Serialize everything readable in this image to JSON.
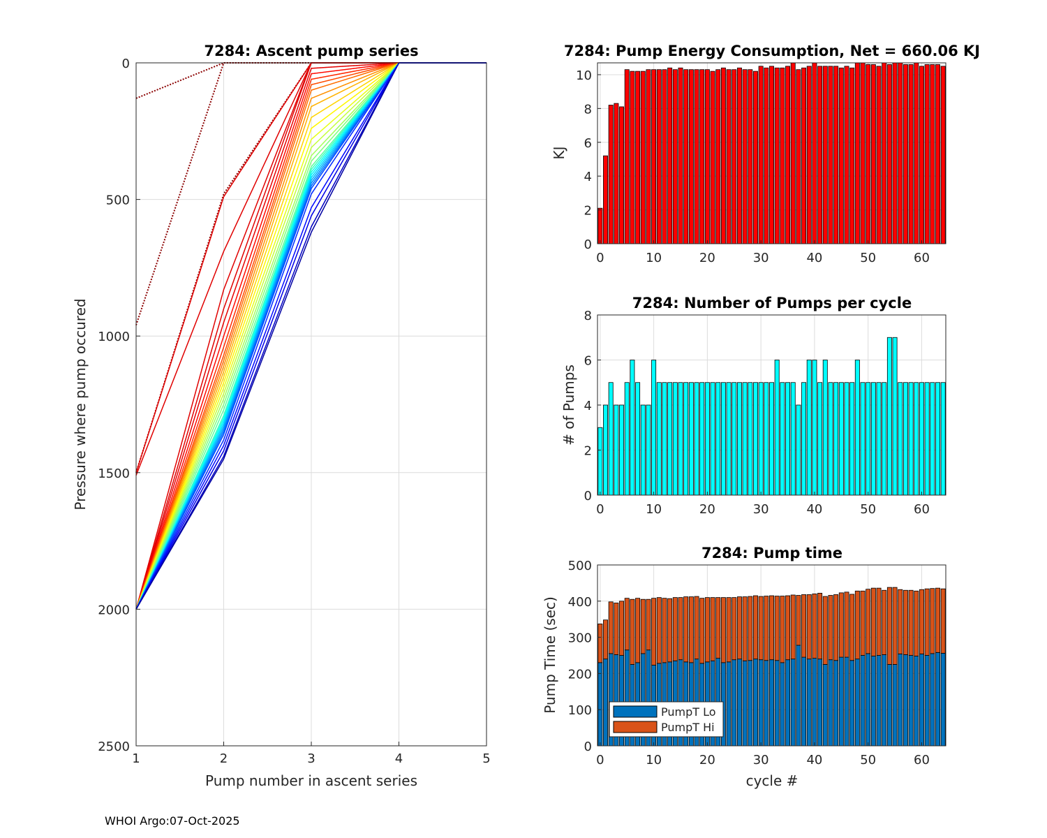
{
  "footer": "WHOI Argo:07-Oct-2025",
  "chart_data": [
    {
      "id": "ascent",
      "type": "line",
      "title": "7284: Ascent pump series",
      "xlabel": "Pump number in ascent series",
      "ylabel": "Pressure where pump occured",
      "xlim": [
        1,
        5
      ],
      "ylim": [
        0,
        2500
      ],
      "y_reversed": true,
      "xticks": [
        1,
        2,
        3,
        4,
        5
      ],
      "yticks": [
        0,
        500,
        1000,
        1500,
        2000,
        2500
      ],
      "grid": true,
      "colormap": "jet",
      "series": [
        {
          "cycle": 0,
          "values": [
            130,
            0,
            0,
            0,
            0
          ],
          "style": "dotted"
        },
        {
          "cycle": 1,
          "values": [
            960,
            0,
            0,
            0,
            0
          ],
          "style": "dotted"
        },
        {
          "cycle": 2,
          "values": [
            1500,
            480,
            0,
            0,
            0
          ],
          "style": "dotted"
        },
        {
          "cycle": 3,
          "values": [
            1500,
            490,
            0,
            0,
            0
          ],
          "style": "solid"
        },
        {
          "cycle": 4,
          "values": [
            1510,
            690,
            0,
            0,
            0
          ],
          "style": "solid"
        },
        {
          "cycle": 5,
          "values": [
            2000,
            830,
            0,
            0,
            0
          ],
          "style": "solid"
        },
        {
          "cycle": 6,
          "values": [
            2000,
            900,
            0,
            0,
            0
          ],
          "style": "solid"
        },
        {
          "cycle": 8,
          "values": [
            2000,
            950,
            20,
            0,
            0
          ],
          "style": "solid"
        },
        {
          "cycle": 10,
          "values": [
            2000,
            1000,
            40,
            0,
            0
          ],
          "style": "solid"
        },
        {
          "cycle": 12,
          "values": [
            2000,
            1040,
            60,
            0,
            0
          ],
          "style": "solid"
        },
        {
          "cycle": 14,
          "values": [
            2000,
            1070,
            80,
            0,
            0
          ],
          "style": "solid"
        },
        {
          "cycle": 16,
          "values": [
            2000,
            1090,
            100,
            0,
            0
          ],
          "style": "solid"
        },
        {
          "cycle": 18,
          "values": [
            2000,
            1110,
            130,
            0,
            0
          ],
          "style": "solid"
        },
        {
          "cycle": 20,
          "values": [
            2000,
            1130,
            160,
            0,
            0
          ],
          "style": "solid"
        },
        {
          "cycle": 22,
          "values": [
            2000,
            1150,
            200,
            0,
            0
          ],
          "style": "solid"
        },
        {
          "cycle": 24,
          "values": [
            2000,
            1170,
            240,
            0,
            0
          ],
          "style": "solid"
        },
        {
          "cycle": 26,
          "values": [
            2000,
            1190,
            280,
            0,
            0
          ],
          "style": "solid"
        },
        {
          "cycle": 28,
          "values": [
            2000,
            1210,
            310,
            0,
            0
          ],
          "style": "solid"
        },
        {
          "cycle": 30,
          "values": [
            2000,
            1230,
            340,
            0,
            0
          ],
          "style": "solid"
        },
        {
          "cycle": 32,
          "values": [
            2000,
            1250,
            360,
            0,
            0
          ],
          "style": "solid"
        },
        {
          "cycle": 34,
          "values": [
            2000,
            1270,
            380,
            0,
            0
          ],
          "style": "solid"
        },
        {
          "cycle": 36,
          "values": [
            2000,
            1290,
            390,
            0,
            0
          ],
          "style": "solid"
        },
        {
          "cycle": 38,
          "values": [
            2000,
            1300,
            400,
            0,
            0
          ],
          "style": "solid"
        },
        {
          "cycle": 40,
          "values": [
            2000,
            1310,
            410,
            0,
            0
          ],
          "style": "solid"
        },
        {
          "cycle": 42,
          "values": [
            2000,
            1320,
            420,
            0,
            0
          ],
          "style": "solid"
        },
        {
          "cycle": 44,
          "values": [
            2000,
            1330,
            430,
            0,
            0
          ],
          "style": "solid"
        },
        {
          "cycle": 46,
          "values": [
            2000,
            1340,
            440,
            0,
            0
          ],
          "style": "solid"
        },
        {
          "cycle": 48,
          "values": [
            2000,
            1350,
            450,
            0,
            0
          ],
          "style": "solid"
        },
        {
          "cycle": 50,
          "values": [
            2000,
            1360,
            460,
            0,
            0
          ],
          "style": "solid"
        },
        {
          "cycle": 52,
          "values": [
            2000,
            1380,
            480,
            0,
            0
          ],
          "style": "solid"
        },
        {
          "cycle": 54,
          "values": [
            2000,
            1400,
            530,
            0,
            0
          ],
          "style": "solid"
        },
        {
          "cycle": 56,
          "values": [
            2000,
            1420,
            560,
            0,
            0
          ],
          "style": "solid"
        },
        {
          "cycle": 58,
          "values": [
            2000,
            1440,
            600,
            0,
            0
          ],
          "style": "solid"
        },
        {
          "cycle": 60,
          "values": [
            2000,
            1450,
            620,
            0,
            0
          ],
          "style": "solid"
        }
      ]
    },
    {
      "id": "energy",
      "type": "bar",
      "title": "7284: Pump Energy Consumption,  Net = 660.06 KJ",
      "xlabel": "",
      "ylabel": "KJ",
      "xlim": [
        -0.5,
        64.5
      ],
      "ylim": [
        0,
        10.7
      ],
      "xticks": [
        0,
        10,
        20,
        30,
        40,
        50,
        60
      ],
      "yticks": [
        0,
        2,
        4,
        6,
        8,
        10
      ],
      "grid": true,
      "color": "#ff0000",
      "categories": [
        0,
        1,
        2,
        3,
        4,
        5,
        6,
        7,
        8,
        9,
        10,
        11,
        12,
        13,
        14,
        15,
        16,
        17,
        18,
        19,
        20,
        21,
        22,
        23,
        24,
        25,
        26,
        27,
        28,
        29,
        30,
        31,
        32,
        33,
        34,
        35,
        36,
        37,
        38,
        39,
        40,
        41,
        42,
        43,
        44,
        45,
        46,
        47,
        48,
        49,
        50,
        51,
        52,
        53,
        54,
        55,
        56,
        57,
        58,
        59,
        60,
        61,
        62,
        63,
        64
      ],
      "values": [
        2.1,
        5.2,
        8.2,
        8.3,
        8.1,
        10.3,
        10.2,
        10.2,
        10.2,
        10.3,
        10.3,
        10.3,
        10.3,
        10.4,
        10.3,
        10.4,
        10.3,
        10.3,
        10.3,
        10.3,
        10.3,
        10.2,
        10.3,
        10.4,
        10.3,
        10.3,
        10.4,
        10.3,
        10.3,
        10.2,
        10.5,
        10.4,
        10.5,
        10.4,
        10.4,
        10.5,
        10.7,
        10.3,
        10.4,
        10.5,
        10.7,
        10.5,
        10.5,
        10.5,
        10.5,
        10.4,
        10.5,
        10.4,
        10.7,
        10.7,
        10.6,
        10.6,
        10.5,
        10.7,
        10.6,
        10.7,
        10.7,
        10.6,
        10.6,
        10.7,
        10.5,
        10.6,
        10.6,
        10.6,
        10.5
      ]
    },
    {
      "id": "npumps",
      "type": "bar",
      "title": "7284: Number of Pumps per cycle",
      "xlabel": "",
      "ylabel": "# of Pumps",
      "xlim": [
        -0.5,
        64.5
      ],
      "ylim": [
        0,
        8
      ],
      "xticks": [
        0,
        10,
        20,
        30,
        40,
        50,
        60
      ],
      "yticks": [
        0,
        2,
        4,
        6,
        8
      ],
      "grid": true,
      "color": "#00ffff",
      "categories": [
        0,
        1,
        2,
        3,
        4,
        5,
        6,
        7,
        8,
        9,
        10,
        11,
        12,
        13,
        14,
        15,
        16,
        17,
        18,
        19,
        20,
        21,
        22,
        23,
        24,
        25,
        26,
        27,
        28,
        29,
        30,
        31,
        32,
        33,
        34,
        35,
        36,
        37,
        38,
        39,
        40,
        41,
        42,
        43,
        44,
        45,
        46,
        47,
        48,
        49,
        50,
        51,
        52,
        53,
        54,
        55,
        56,
        57,
        58,
        59,
        60,
        61,
        62,
        63,
        64
      ],
      "values": [
        3,
        4,
        5,
        4,
        4,
        5,
        6,
        5,
        4,
        4,
        6,
        5,
        5,
        5,
        5,
        5,
        5,
        5,
        5,
        5,
        5,
        5,
        5,
        5,
        5,
        5,
        5,
        5,
        5,
        5,
        5,
        5,
        5,
        6,
        5,
        5,
        5,
        4,
        5,
        6,
        6,
        5,
        6,
        5,
        5,
        5,
        5,
        5,
        6,
        5,
        5,
        5,
        5,
        5,
        7,
        7,
        5,
        5,
        5,
        5,
        5,
        5,
        5,
        5,
        5
      ]
    },
    {
      "id": "pumptime",
      "type": "bar",
      "stacked": true,
      "title": "7284: Pump time",
      "xlabel": "cycle #",
      "ylabel": "Pump Time (sec)",
      "xlim": [
        -0.5,
        64.5
      ],
      "ylim": [
        0,
        500
      ],
      "xticks": [
        0,
        10,
        20,
        30,
        40,
        50,
        60
      ],
      "yticks": [
        0,
        100,
        200,
        300,
        400,
        500
      ],
      "grid": true,
      "legend_position": "bottom-left",
      "categories": [
        0,
        1,
        2,
        3,
        4,
        5,
        6,
        7,
        8,
        9,
        10,
        11,
        12,
        13,
        14,
        15,
        16,
        17,
        18,
        19,
        20,
        21,
        22,
        23,
        24,
        25,
        26,
        27,
        28,
        29,
        30,
        31,
        32,
        33,
        34,
        35,
        36,
        37,
        38,
        39,
        40,
        41,
        42,
        43,
        44,
        45,
        46,
        47,
        48,
        49,
        50,
        51,
        52,
        53,
        54,
        55,
        56,
        57,
        58,
        59,
        60,
        61,
        62,
        63,
        64
      ],
      "series": [
        {
          "name": "PumpT Lo",
          "color": "#0072bd",
          "values": [
            230,
            240,
            255,
            252,
            250,
            265,
            225,
            230,
            255,
            265,
            223,
            228,
            230,
            232,
            235,
            238,
            232,
            230,
            240,
            228,
            232,
            235,
            242,
            230,
            232,
            238,
            240,
            235,
            236,
            240,
            238,
            236,
            238,
            236,
            230,
            238,
            240,
            278,
            245,
            240,
            242,
            240,
            225,
            238,
            236,
            245,
            245,
            236,
            240,
            250,
            255,
            248,
            250,
            252,
            225,
            225,
            254,
            252,
            250,
            248,
            254,
            250,
            255,
            258,
            256
          ]
        },
        {
          "name": "PumpT Hi",
          "color": "#d95319",
          "values": [
            107,
            108,
            143,
            143,
            150,
            143,
            180,
            178,
            150,
            140,
            185,
            182,
            178,
            175,
            175,
            172,
            180,
            182,
            173,
            180,
            178,
            175,
            168,
            180,
            178,
            172,
            172,
            177,
            177,
            175,
            175,
            178,
            177,
            178,
            184,
            177,
            177,
            138,
            173,
            178,
            178,
            182,
            188,
            178,
            182,
            178,
            180,
            183,
            188,
            178,
            178,
            188,
            186,
            178,
            213,
            213,
            178,
            178,
            180,
            180,
            178,
            184,
            180,
            178,
            178
          ]
        }
      ]
    }
  ]
}
